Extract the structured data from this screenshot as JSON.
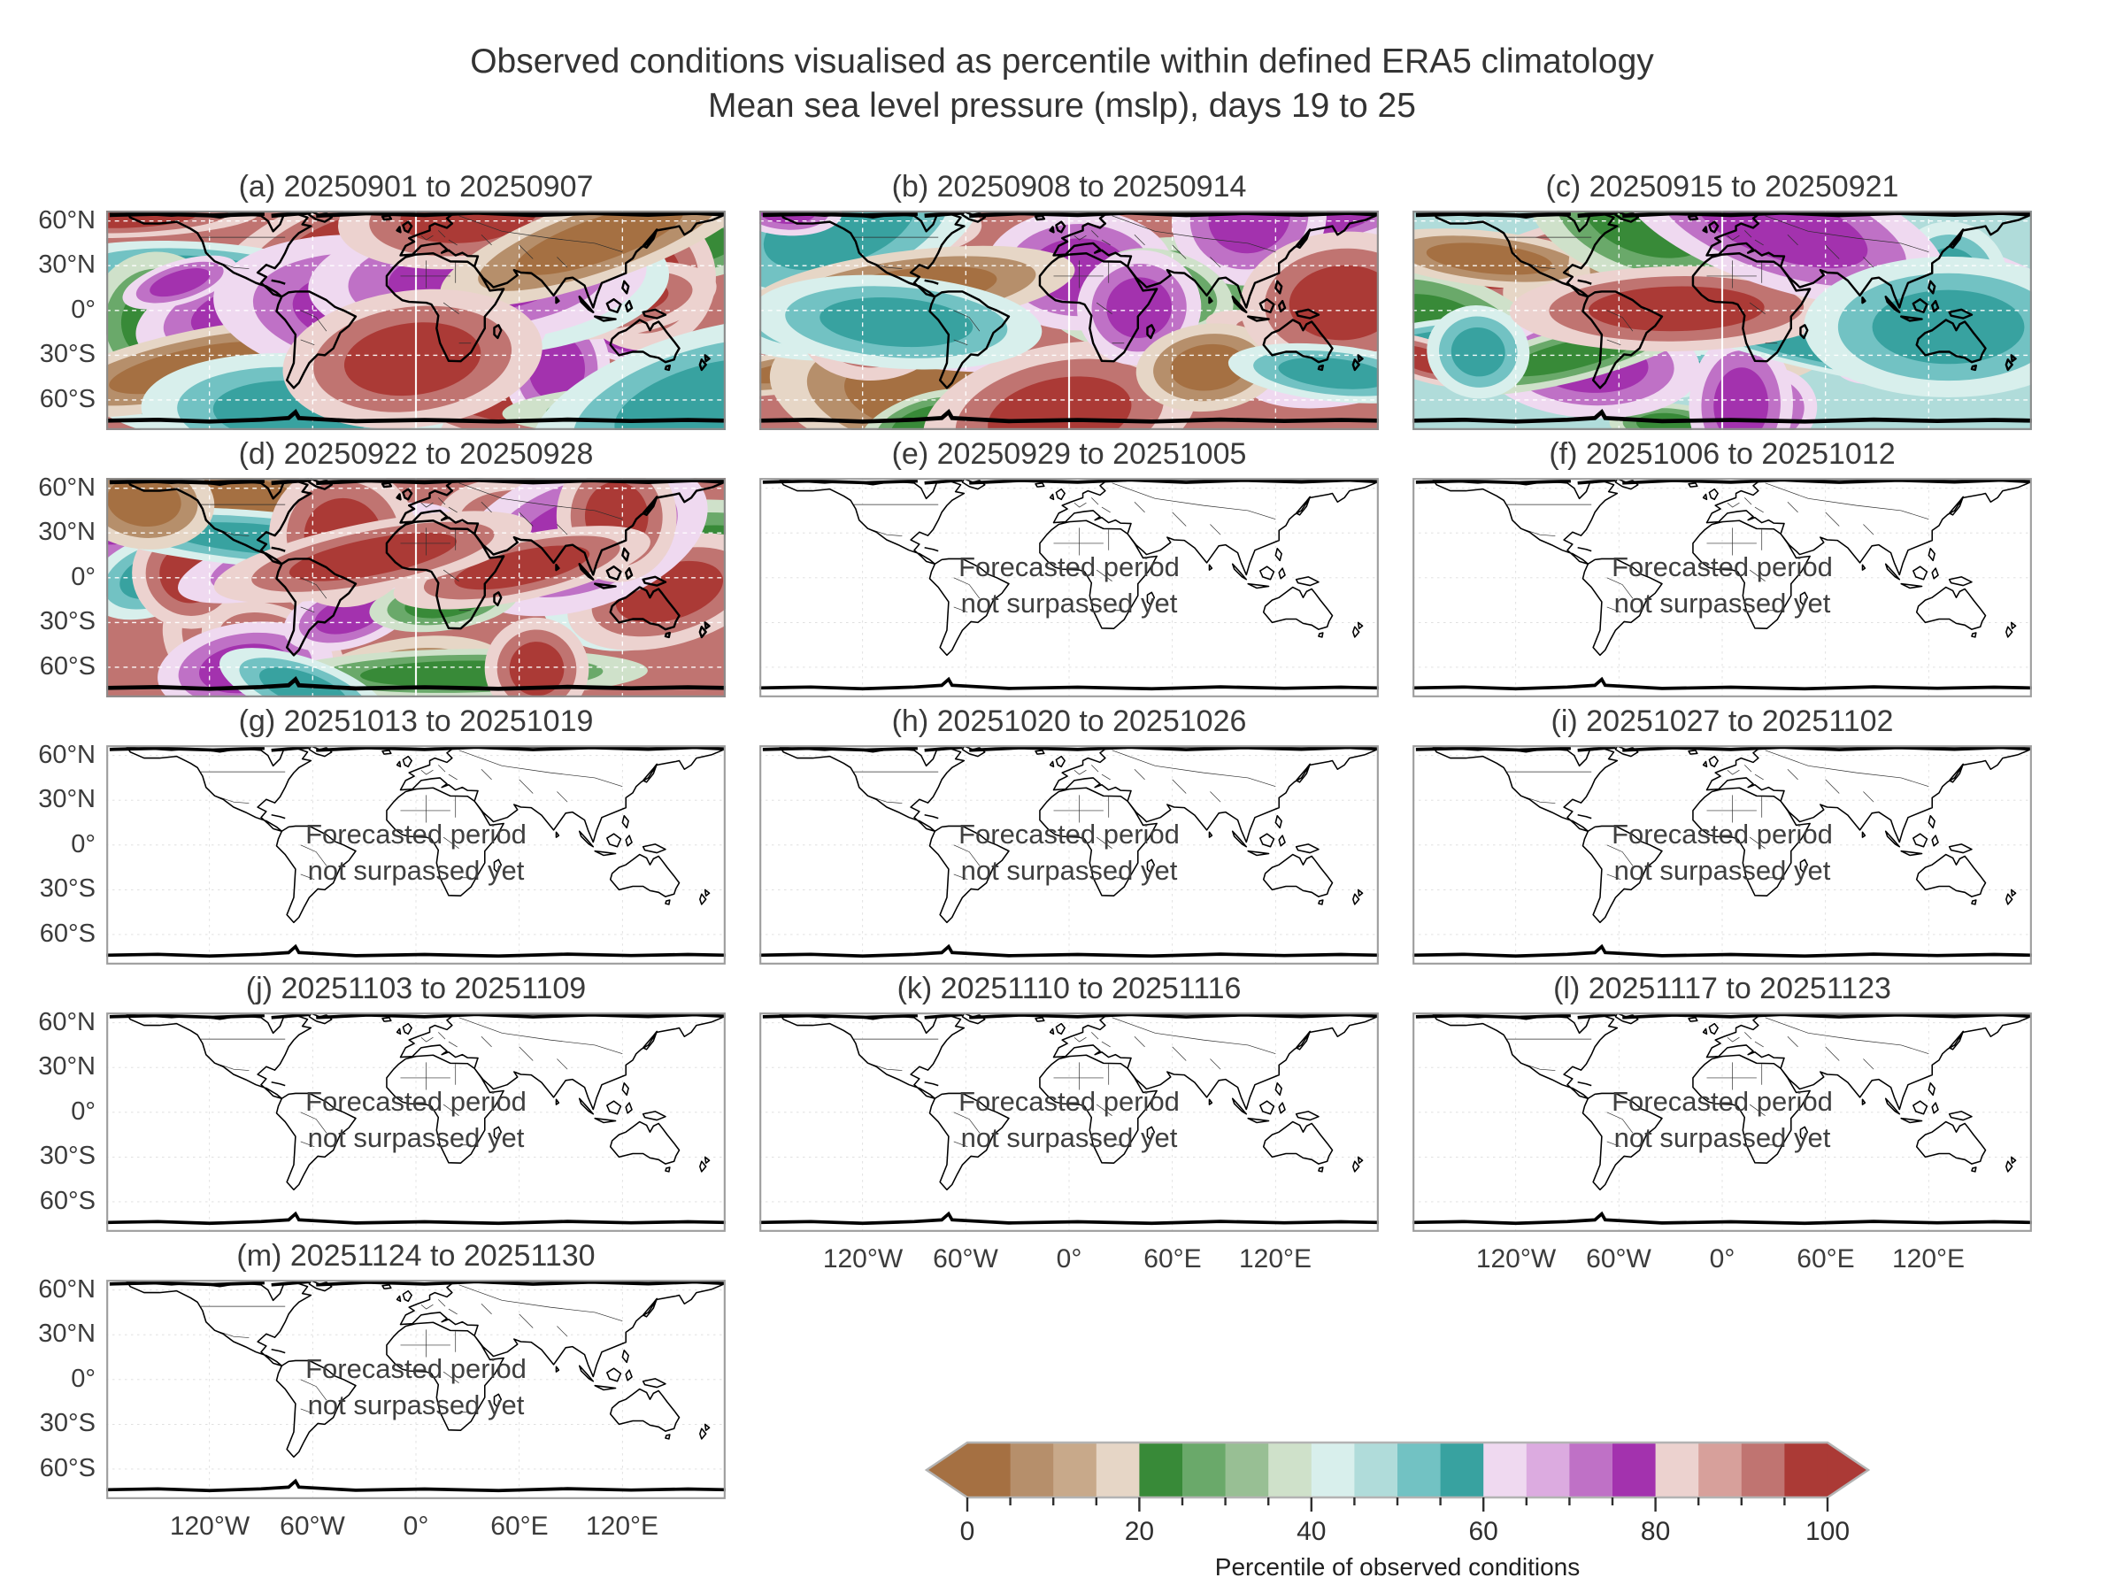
{
  "figure": {
    "suptitle_line1": "Observed conditions visualised as percentile within defined ERA5 climatology",
    "suptitle_line2": "Mean sea level pressure (mslp), days 19 to 25"
  },
  "axes": {
    "y_tick_labels": [
      "60°N",
      "30°N",
      "0°",
      "30°S",
      "60°S"
    ],
    "x_tick_labels": [
      "120°W",
      "60°W",
      "0°",
      "60°E",
      "120°E"
    ]
  },
  "forecast_note": {
    "line1": "Forecasted period",
    "line2": "not surpassed yet"
  },
  "panels": [
    {
      "key": "a",
      "label": "(a) 20250901 to 20250907",
      "start": "20250901",
      "end": "20250907",
      "status": "observed"
    },
    {
      "key": "b",
      "label": "(b) 20250908 to 20250914",
      "start": "20250908",
      "end": "20250914",
      "status": "observed"
    },
    {
      "key": "c",
      "label": "(c) 20250915 to 20250921",
      "start": "20250915",
      "end": "20250921",
      "status": "observed"
    },
    {
      "key": "d",
      "label": "(d) 20250922 to 20250928",
      "start": "20250922",
      "end": "20250928",
      "status": "observed"
    },
    {
      "key": "e",
      "label": "(e) 20250929 to 20251005",
      "start": "20250929",
      "end": "20251005",
      "status": "forecast_pending"
    },
    {
      "key": "f",
      "label": "(f) 20251006 to 20251012",
      "start": "20251006",
      "end": "20251012",
      "status": "forecast_pending"
    },
    {
      "key": "g",
      "label": "(g) 20251013 to 20251019",
      "start": "20251013",
      "end": "20251019",
      "status": "forecast_pending"
    },
    {
      "key": "h",
      "label": "(h) 20251020 to 20251026",
      "start": "20251020",
      "end": "20251026",
      "status": "forecast_pending"
    },
    {
      "key": "i",
      "label": "(i) 20251027 to 20251102",
      "start": "20251027",
      "end": "20251102",
      "status": "forecast_pending"
    },
    {
      "key": "j",
      "label": "(j) 20251103 to 20251109",
      "start": "20251103",
      "end": "20251109",
      "status": "forecast_pending"
    },
    {
      "key": "k",
      "label": "(k) 20251110 to 20251116",
      "start": "20251110",
      "end": "20251116",
      "status": "forecast_pending"
    },
    {
      "key": "l",
      "label": "(l) 20251117 to 20251123",
      "start": "20251117",
      "end": "20251123",
      "status": "forecast_pending"
    },
    {
      "key": "m",
      "label": "(m) 20251124 to 20251130",
      "start": "20251124",
      "end": "20251130",
      "status": "forecast_pending"
    }
  ],
  "colorbar": {
    "label": "Percentile of observed conditions",
    "tick_labels": [
      "0",
      "20",
      "40",
      "60",
      "80",
      "100"
    ],
    "range": [
      0,
      100
    ],
    "segment_step": 5,
    "extend": "both",
    "colors": [
      "#a57042",
      "#b68f6b",
      "#c8a98a",
      "#e6d6c6",
      "#388a38",
      "#6aa96a",
      "#98bf94",
      "#cfe1ca",
      "#d8efec",
      "#b0dcda",
      "#72c2c3",
      "#38a2a0",
      "#efd9f0",
      "#dcabe0",
      "#bf71c6",
      "#a332ae",
      "#ecd2cf",
      "#d7a09b",
      "#c07471",
      "#ab3a36"
    ]
  },
  "chart_data": {
    "type": "heatmap",
    "title": "Observed conditions visualised as percentile within defined ERA5 climatology",
    "subtitle": "Mean sea level pressure (mslp), days 19 to 25",
    "figure_layout": "grid of 13 weekly global maps (3 columns x 5 rows), equirectangular world maps",
    "variable": "Mean sea level pressure (mslp) percentile within ERA5 climatology",
    "x_ticks": [
      "120°W",
      "60°W",
      "0°",
      "60°E",
      "120°E"
    ],
    "y_ticks": [
      "60°N",
      "30°N",
      "0°",
      "30°S",
      "60°S"
    ],
    "panels": [
      {
        "panel": "a",
        "week": "20250901-20250907",
        "data": "observed percentile field (full colour map)"
      },
      {
        "panel": "b",
        "week": "20250908-20250914",
        "data": "observed percentile field (full colour map)"
      },
      {
        "panel": "c",
        "week": "20250915-20250921",
        "data": "observed percentile field (full colour map)"
      },
      {
        "panel": "d",
        "week": "20250922-20250928",
        "data": "observed percentile field (full colour map)"
      },
      {
        "panel": "e",
        "week": "20250929-20251005",
        "data": "Forecasted period not surpassed yet"
      },
      {
        "panel": "f",
        "week": "20251006-20251012",
        "data": "Forecasted period not surpassed yet"
      },
      {
        "panel": "g",
        "week": "20251013-20251019",
        "data": "Forecasted period not surpassed yet"
      },
      {
        "panel": "h",
        "week": "20251020-20251026",
        "data": "Forecasted period not surpassed yet"
      },
      {
        "panel": "i",
        "week": "20251027-20251102",
        "data": "Forecasted period not surpassed yet"
      },
      {
        "panel": "j",
        "week": "20251103-20251109",
        "data": "Forecasted period not surpassed yet"
      },
      {
        "panel": "k",
        "week": "20251110-20251116",
        "data": "Forecasted period not surpassed yet"
      },
      {
        "panel": "l",
        "week": "20251117-20251123",
        "data": "Forecasted period not surpassed yet"
      },
      {
        "panel": "m",
        "week": "20251124-20251130",
        "data": "Forecasted period not surpassed yet"
      }
    ],
    "colorbar": {
      "label": "Percentile of observed conditions",
      "ticks": [
        0,
        20,
        40,
        60,
        80,
        100
      ],
      "n_segments": 20,
      "segment_step": 5,
      "extend": "both",
      "palette": "brown (low) -> tan -> green -> pale cyan -> teal -> pale lilac -> magenta -> purple -> pale pink -> rose -> dark red (high)"
    }
  }
}
